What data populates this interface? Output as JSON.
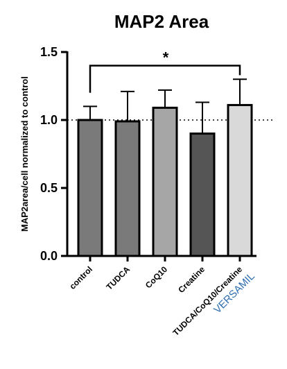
{
  "chart_data": {
    "type": "bar",
    "title": "MAP2 Area",
    "ylabel": "MAP2area/cell normalized to control",
    "ylim": [
      0,
      1.5
    ],
    "yticks": [
      "0.0",
      "0.5",
      "1.0",
      "1.5"
    ],
    "reference_line": 1.0,
    "categories": [
      "control",
      "TUDCA",
      "CoQ10",
      "Creatine",
      "TUDCA/CoQ10/Creatine"
    ],
    "values": [
      1.0,
      0.99,
      1.09,
      0.9,
      1.11
    ],
    "error_upper": [
      0.1,
      0.22,
      0.13,
      0.23,
      0.19
    ],
    "colors": [
      "#7a7a7a",
      "#7a7a7a",
      "#a6a6a6",
      "#555555",
      "#d9d9d9"
    ],
    "significance": {
      "from": "control",
      "to": "TUDCA/CoQ10/Creatine",
      "label": "*"
    },
    "sublabel": {
      "text": "VERSAMIL",
      "color": "#2e6db0"
    }
  }
}
